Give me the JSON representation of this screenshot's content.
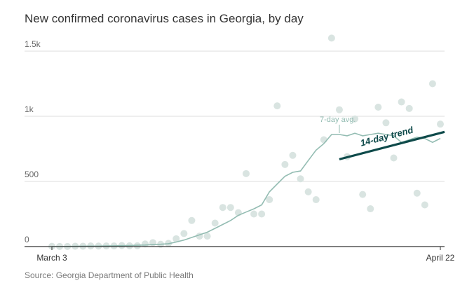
{
  "title": "New confirmed coronavirus cases in Georgia, by day",
  "source": "Source: Georgia Department of Public Health",
  "colors": {
    "dot": "#d9e4e1",
    "avg_line": "#93bcb2",
    "trend": "#0e4a4a",
    "grid": "#dddddd",
    "axis": "#333333"
  },
  "chart_data": {
    "type": "scatter",
    "title": "New confirmed coronavirus cases in Georgia, by day",
    "ylim": [
      0,
      1500
    ],
    "yticks": [
      {
        "value": 0,
        "label": "0"
      },
      {
        "value": 500,
        "label": "500"
      },
      {
        "value": 1000,
        "label": "1k"
      },
      {
        "value": 1500,
        "label": "1.5k"
      }
    ],
    "xticks": [
      {
        "day": 0,
        "label": "March 3"
      },
      {
        "day": 50,
        "label": "April 22"
      }
    ],
    "daily_cases": [
      2,
      1,
      1,
      3,
      3,
      5,
      4,
      5,
      5,
      8,
      6,
      6,
      20,
      30,
      18,
      25,
      60,
      100,
      200,
      80,
      80,
      180,
      300,
      300,
      260,
      560,
      250,
      250,
      360,
      1080,
      630,
      700,
      520,
      420,
      360,
      820,
      1600,
      1050,
      690,
      980,
      400,
      290,
      1070,
      950,
      680,
      1110,
      1060,
      410,
      320,
      1250,
      940
    ],
    "seven_day_avg": [
      0,
      0,
      1,
      2,
      3,
      4,
      4,
      5,
      6,
      7,
      8,
      10,
      12,
      15,
      18,
      22,
      35,
      50,
      70,
      90,
      110,
      140,
      170,
      200,
      240,
      265,
      290,
      320,
      420,
      480,
      540,
      570,
      580,
      660,
      740,
      790,
      860,
      860,
      850,
      870,
      850,
      860,
      870,
      860,
      850,
      800,
      820,
      840,
      830,
      800,
      830
    ],
    "trend": {
      "label": "14-day trend",
      "start": {
        "day": 37,
        "value": 670
      },
      "end": {
        "day": 50,
        "value": 880
      }
    },
    "annotation": {
      "label": "7-day avg."
    }
  }
}
